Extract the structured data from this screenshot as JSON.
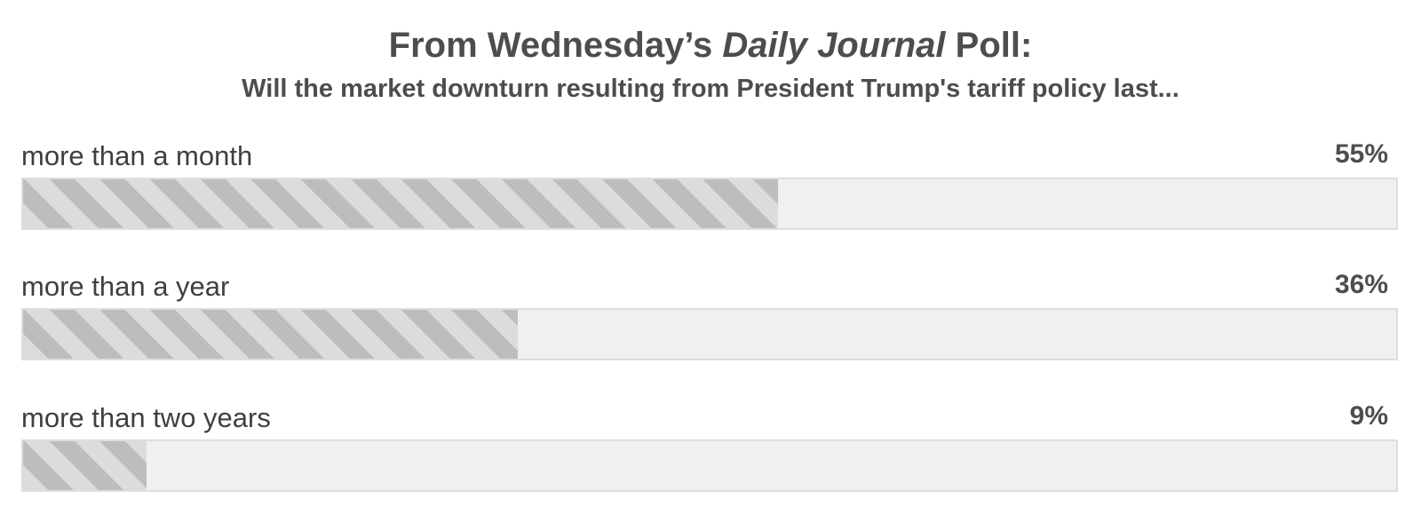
{
  "header": {
    "title_prefix": "From Wednesday’s ",
    "title_italic": "Daily Journal",
    "title_suffix": " Poll:",
    "subtitle": "Will the market downturn resulting from President Trump's tariff policy last..."
  },
  "chart_data": {
    "type": "bar",
    "orientation": "horizontal",
    "title": "From Wednesday’s Daily Journal Poll:",
    "subtitle": "Will the market downturn resulting from President Trump's tariff policy last...",
    "categories": [
      "more than a month",
      "more than a year",
      "more than two years"
    ],
    "values": [
      55,
      36,
      9
    ],
    "value_labels": [
      "55%",
      "36%",
      "9%"
    ],
    "unit": "%",
    "xlim": [
      0,
      100
    ],
    "grid": false,
    "colors": {
      "fill_light": "#dcdcdc",
      "fill_dark": "#bdbdbd",
      "track": "#f0f0f0",
      "track_border": "#dedede"
    }
  }
}
